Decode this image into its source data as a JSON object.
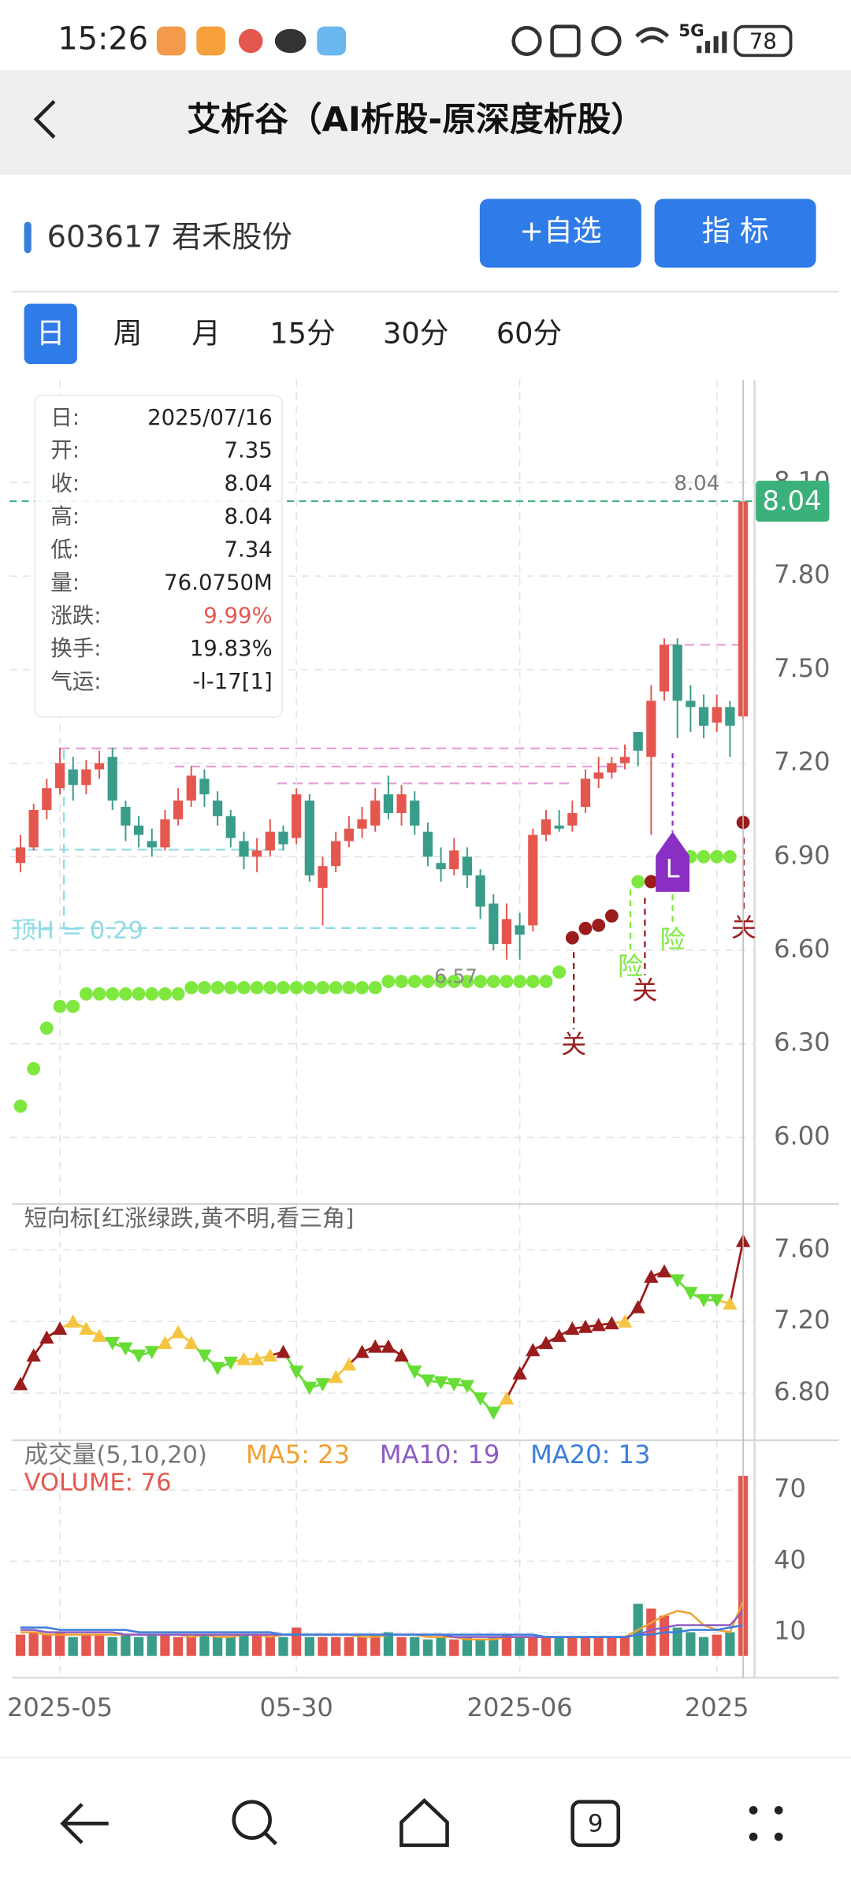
{
  "status_bar": {
    "time": "15:26",
    "network": "5G",
    "battery": "78"
  },
  "header": {
    "title": "艾析谷（AI析股-原深度析股）"
  },
  "stock": {
    "name": "603617 君禾股份",
    "buttons": [
      "+自选",
      "指 标"
    ]
  },
  "tabs": [
    "日",
    "周",
    "月",
    "15分",
    "30分",
    "60分"
  ],
  "selected_tab": 0,
  "info_panel": {
    "rows": [
      [
        "日:",
        "2025/07/16"
      ],
      [
        "开:",
        "7.35"
      ],
      [
        "收:",
        "8.04"
      ],
      [
        "高:",
        "8.04"
      ],
      [
        "低:",
        "7.34"
      ],
      [
        "量:",
        "76.0750M"
      ],
      [
        "涨跌:",
        "9.99%"
      ],
      [
        "换手:",
        "19.83%"
      ],
      [
        "气运:",
        "-l-17[1]"
      ]
    ]
  },
  "chart_data": [
    {
      "type": "candlestick",
      "up_color": "#e4574f",
      "down_color": "#3a9d8a",
      "ylim": [
        5.79,
        8.43
      ],
      "yticks": [
        {
          "value": 6.0,
          "label": "6.00"
        },
        {
          "value": 6.3,
          "label": "6.30"
        },
        {
          "value": 6.6,
          "label": "6.60"
        },
        {
          "value": 6.9,
          "label": "6.90"
        },
        {
          "value": 7.2,
          "label": "7.20"
        },
        {
          "value": 7.5,
          "label": "7.50"
        },
        {
          "value": 7.8,
          "label": "7.80"
        },
        {
          "value": 8.1,
          "label": "8.10"
        }
      ],
      "grid": true,
      "open": [
        6.88,
        6.93,
        7.05,
        7.12,
        7.18,
        7.13,
        7.18,
        7.22,
        7.06,
        7.0,
        6.95,
        6.93,
        7.02,
        7.08,
        7.15,
        7.08,
        7.03,
        6.95,
        6.9,
        6.92,
        6.98,
        6.96,
        7.08,
        6.8,
        6.87,
        6.95,
        6.99,
        7.0,
        7.1,
        7.04,
        7.08,
        6.98,
        6.88,
        6.86,
        6.9,
        6.84,
        6.75,
        6.62,
        6.68,
        6.68,
        6.97,
        7.0,
        7.0,
        7.06,
        7.15,
        7.17,
        7.2,
        7.3,
        7.22,
        7.43,
        7.58,
        7.4,
        7.38,
        7.33,
        7.38,
        7.35
      ],
      "high": [
        6.97,
        7.07,
        7.15,
        7.25,
        7.22,
        7.21,
        7.24,
        7.25,
        7.08,
        7.03,
        6.99,
        7.05,
        7.12,
        7.19,
        7.18,
        7.11,
        7.05,
        6.98,
        6.96,
        7.02,
        7.0,
        7.12,
        7.1,
        6.9,
        6.98,
        7.03,
        7.06,
        7.12,
        7.16,
        7.13,
        7.11,
        7.01,
        6.93,
        6.96,
        6.93,
        6.86,
        6.78,
        6.75,
        6.72,
        6.99,
        7.05,
        7.05,
        7.08,
        7.18,
        7.22,
        7.22,
        7.26,
        7.3,
        7.45,
        7.6,
        7.6,
        7.45,
        7.42,
        7.42,
        7.4,
        8.04
      ],
      "low": [
        6.85,
        6.92,
        7.02,
        7.1,
        7.08,
        7.1,
        7.15,
        7.05,
        6.95,
        6.93,
        6.9,
        6.92,
        7.0,
        7.06,
        7.06,
        7.0,
        6.93,
        6.86,
        6.85,
        6.9,
        6.92,
        6.94,
        6.82,
        6.68,
        6.85,
        6.93,
        6.96,
        6.98,
        7.02,
        7.0,
        6.97,
        6.87,
        6.82,
        6.84,
        6.8,
        6.7,
        6.6,
        6.57,
        6.57,
        6.66,
        6.95,
        6.98,
        6.98,
        7.04,
        7.12,
        7.15,
        7.18,
        7.19,
        6.97,
        7.4,
        7.28,
        7.3,
        7.28,
        7.3,
        7.22,
        7.34
      ],
      "close": [
        6.93,
        7.05,
        7.12,
        7.2,
        7.13,
        7.18,
        7.2,
        7.08,
        7.0,
        6.97,
        6.93,
        7.02,
        7.08,
        7.16,
        7.1,
        7.03,
        6.96,
        6.9,
        6.92,
        6.98,
        6.94,
        7.1,
        6.84,
        6.87,
        6.95,
        6.99,
        7.02,
        7.08,
        7.04,
        7.1,
        7.0,
        6.9,
        6.86,
        6.92,
        6.84,
        6.74,
        6.62,
        6.7,
        6.65,
        6.97,
        7.02,
        6.99,
        7.04,
        7.15,
        7.17,
        7.2,
        7.22,
        7.24,
        7.4,
        7.58,
        7.4,
        7.38,
        7.32,
        7.38,
        7.32,
        8.04
      ],
      "dot_series": [
        {
          "color": "#7ee83f",
          "values": [
            6.1,
            6.22,
            6.35,
            6.42,
            6.42,
            6.46,
            6.46,
            6.46,
            6.46,
            6.46,
            6.46,
            6.46,
            6.46,
            6.48,
            6.48,
            6.48,
            6.48,
            6.48,
            6.48,
            6.48,
            6.48,
            6.48,
            6.48,
            6.48,
            6.48,
            6.48,
            6.48,
            6.48,
            6.5,
            6.5,
            6.5,
            6.5,
            6.5,
            6.5,
            6.5,
            6.5,
            6.5,
            6.5,
            6.5,
            6.5,
            6.5,
            6.53,
            null,
            null,
            null,
            null,
            null,
            6.82,
            null,
            null,
            6.88,
            6.9,
            6.9,
            6.9,
            6.9,
            null
          ]
        },
        {
          "color": "#9b1c1c",
          "values": [
            null,
            null,
            null,
            null,
            null,
            null,
            null,
            null,
            null,
            null,
            null,
            null,
            null,
            null,
            null,
            null,
            null,
            null,
            null,
            null,
            null,
            null,
            null,
            null,
            null,
            null,
            null,
            null,
            null,
            null,
            null,
            null,
            null,
            null,
            null,
            null,
            null,
            null,
            null,
            null,
            null,
            null,
            6.64,
            6.67,
            6.68,
            6.71,
            null,
            null,
            6.82,
            6.87,
            null,
            null,
            null,
            null,
            null,
            7.01
          ]
        }
      ],
      "last_price": {
        "value": 8.04,
        "label": "8.04",
        "color": "#3bb07a"
      },
      "low_label": "6.57",
      "annotations": [
        "关",
        "关",
        "关",
        "险",
        "险",
        "L",
        "顶H = 0.29"
      ]
    },
    {
      "type": "line",
      "title": "短向标[红涨绿跌,黄不明,看三角]",
      "ylim": [
        6.55,
        7.85
      ],
      "yticks": [
        {
          "value": 6.8,
          "label": "6.80"
        },
        {
          "value": 7.2,
          "label": "7.20"
        },
        {
          "value": 7.6,
          "label": "7.60"
        }
      ],
      "grid": true,
      "values": [
        6.85,
        7.01,
        7.11,
        7.16,
        7.2,
        7.16,
        7.12,
        7.08,
        7.05,
        7.01,
        7.03,
        7.08,
        7.14,
        7.08,
        7.01,
        6.94,
        6.97,
        6.99,
        6.99,
        7.01,
        7.03,
        6.92,
        6.83,
        6.85,
        6.89,
        6.96,
        7.03,
        7.06,
        7.06,
        7.01,
        6.92,
        6.87,
        6.86,
        6.85,
        6.84,
        6.77,
        6.69,
        6.77,
        6.91,
        7.04,
        7.08,
        7.12,
        7.16,
        7.17,
        7.18,
        7.19,
        7.2,
        7.28,
        7.45,
        7.48,
        7.43,
        7.36,
        7.32,
        7.32,
        7.3,
        7.65
      ],
      "signals": [
        "up",
        "up",
        "up",
        "up",
        "flat",
        "flat",
        "flat",
        "down",
        "down",
        "down",
        "down",
        "flat",
        "flat",
        "flat",
        "down",
        "down",
        "down",
        "flat",
        "flat",
        "flat",
        "up",
        "down",
        "down",
        "down",
        "flat",
        "flat",
        "up",
        "up",
        "up",
        "up",
        "down",
        "down",
        "down",
        "down",
        "down",
        "down",
        "down",
        "flat",
        "up",
        "up",
        "up",
        "up",
        "up",
        "up",
        "up",
        "up",
        "flat",
        "up",
        "up",
        "up",
        "down",
        "down",
        "down",
        "down",
        "flat",
        "up"
      ],
      "signal_colors": {
        "up": "#9b1c1c",
        "down": "#66dd33",
        "flat": "#f5c542"
      }
    },
    {
      "type": "bar",
      "title": "成交量(5,10,20)",
      "volume_label": "VOLUME: 76",
      "categories": [
        null,
        null,
        null,
        "2025-05",
        null,
        null,
        null,
        null,
        null,
        null,
        null,
        null,
        null,
        null,
        null,
        null,
        null,
        null,
        null,
        null,
        null,
        "05-30",
        null,
        null,
        null,
        null,
        null,
        null,
        null,
        null,
        null,
        null,
        null,
        null,
        null,
        null,
        null,
        null,
        "2025-06",
        null,
        null,
        null,
        null,
        null,
        null,
        null,
        null,
        null,
        null,
        null,
        null,
        null,
        null,
        "2025",
        null,
        null
      ],
      "values": [
        9,
        10,
        9,
        10,
        8,
        9,
        9,
        8,
        9,
        8,
        9,
        9,
        8,
        8,
        9,
        8,
        8,
        9,
        9,
        8,
        8,
        12,
        8,
        8,
        8,
        8,
        8,
        9,
        10,
        8,
        8,
        7,
        8,
        7,
        8,
        7,
        8,
        9,
        8,
        8,
        8,
        8,
        8,
        8,
        8,
        8,
        8,
        22,
        20,
        17,
        12,
        10,
        8,
        9,
        10,
        76
      ],
      "ylim": [
        0,
        90
      ],
      "yticks": [
        10,
        40,
        70
      ],
      "grid": true,
      "series": [
        {
          "name": "MA5: 23",
          "color": "#f0a030",
          "values": [
            10,
            10,
            9,
            9,
            9,
            9,
            9,
            9,
            9,
            9,
            9,
            9,
            9,
            8,
            9,
            8,
            8,
            9,
            9,
            8,
            9,
            9,
            9,
            9,
            9,
            9,
            8,
            8,
            9,
            9,
            9,
            8,
            8,
            8,
            7,
            7,
            7,
            8,
            8,
            8,
            8,
            8,
            8,
            8,
            8,
            8,
            8,
            11,
            14,
            17,
            19,
            18,
            13,
            11,
            10,
            23
          ]
        },
        {
          "name": "MA10: 19",
          "color": "#8e5bc4",
          "values": [
            11,
            11,
            10,
            10,
            10,
            10,
            10,
            10,
            9,
            9,
            9,
            9,
            9,
            9,
            9,
            9,
            9,
            9,
            9,
            9,
            9,
            9,
            9,
            9,
            9,
            9,
            9,
            9,
            9,
            9,
            9,
            9,
            9,
            8,
            8,
            8,
            8,
            8,
            8,
            8,
            8,
            8,
            8,
            8,
            8,
            8,
            8,
            9,
            11,
            12,
            13,
            13,
            13,
            13,
            13,
            19
          ]
        },
        {
          "name": "MA20: 13",
          "color": "#3b7ddd",
          "values": [
            12,
            12,
            12,
            11,
            11,
            11,
            11,
            11,
            11,
            10,
            10,
            10,
            10,
            10,
            10,
            10,
            10,
            10,
            10,
            10,
            9,
            9,
            9,
            9,
            9,
            9,
            9,
            9,
            9,
            9,
            9,
            9,
            9,
            9,
            9,
            9,
            9,
            9,
            9,
            9,
            8,
            8,
            8,
            8,
            8,
            8,
            8,
            9,
            9,
            10,
            10,
            11,
            11,
            11,
            12,
            13
          ]
        }
      ]
    }
  ],
  "nav_bar": {
    "tabs_count": "9"
  }
}
